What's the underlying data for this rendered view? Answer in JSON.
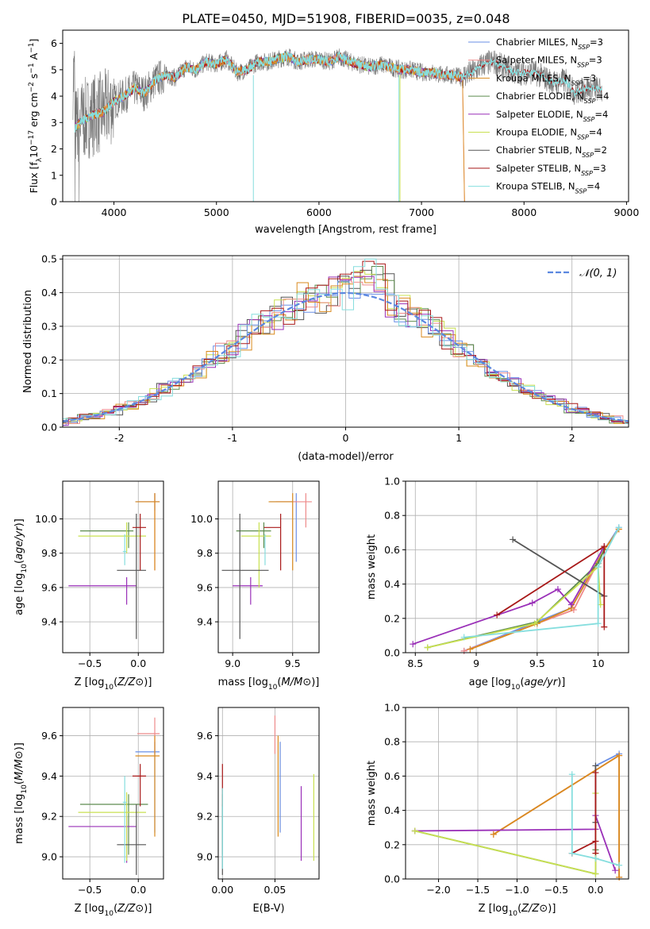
{
  "figure_title": "PLATE=0450, MJD=51908, FIBERID=0035, z=0.048",
  "colors": [
    "#6a8fe6",
    "#ee8a8a",
    "#d98a1e",
    "#5e8c4f",
    "#9a30b8",
    "#c8e050",
    "#555555",
    "#a81818",
    "#86dede"
  ],
  "chart_data": [
    {
      "type": "line",
      "name": "spectrum",
      "title": "PLATE=0450, MJD=51908, FIBERID=0035, z=0.048",
      "xlabel": "wavelength [Angstrom, rest frame]",
      "ylabel_parts": [
        "Flux [f",
        "λ",
        "10",
        "−17",
        " erg cm",
        "−2",
        " s",
        "−1",
        " A",
        "−1",
        "]"
      ],
      "xlim": [
        3500,
        9020
      ],
      "ylim": [
        0,
        6.5
      ],
      "xticks": [
        4000,
        5000,
        6000,
        7000,
        8000,
        9000
      ],
      "yticks": [
        0,
        1,
        2,
        3,
        4,
        5,
        6
      ],
      "legend_position": "top-right",
      "legend": [
        {
          "label": "Chabrier MILES, N",
          "sub": "SSP",
          "suffix": "=3"
        },
        {
          "label": "Salpeter MILES, N",
          "sub": "SSP",
          "suffix": "=3"
        },
        {
          "label": "Kroupa MILES, N",
          "sub": "SSP",
          "suffix": "=3"
        },
        {
          "label": "Chabrier ELODIE, N",
          "sub": "SSP",
          "suffix": "=4"
        },
        {
          "label": "Salpeter ELODIE, N",
          "sub": "SSP",
          "suffix": "=4"
        },
        {
          "label": "Kroupa ELODIE, N",
          "sub": "SSP",
          "suffix": "=4"
        },
        {
          "label": "Chabrier STELIB, N",
          "sub": "SSP",
          "suffix": "=2"
        },
        {
          "label": "Salpeter STELIB, N",
          "sub": "SSP",
          "suffix": "=3"
        },
        {
          "label": "Kroupa STELIB, N",
          "sub": "SSP",
          "suffix": "=4"
        }
      ],
      "model_curve": {
        "x": [
          3620,
          3700,
          3800,
          3900,
          4000,
          4100,
          4200,
          4300,
          4400,
          4500,
          4600,
          4700,
          4800,
          4900,
          5000,
          5100,
          5200,
          5300,
          5400,
          5500,
          5600,
          5700,
          5800,
          5900,
          6000,
          6100,
          6200,
          6300,
          6400,
          6500,
          6600,
          6700,
          6800,
          6900,
          7000,
          7100,
          7200,
          7300,
          7400
        ],
        "y": [
          2.8,
          3.1,
          3.3,
          3.4,
          3.8,
          4.0,
          4.3,
          4.1,
          4.6,
          4.8,
          4.7,
          5.1,
          5.0,
          5.3,
          5.2,
          5.4,
          4.9,
          5.0,
          5.3,
          5.3,
          5.4,
          5.5,
          5.3,
          5.4,
          5.4,
          5.3,
          5.5,
          5.3,
          5.2,
          5.1,
          5.2,
          5.1,
          5.0,
          5.0,
          4.9,
          4.9,
          4.8,
          4.8,
          4.7
        ]
      },
      "extended_curve": {
        "x": [
          7400,
          7500,
          7600,
          7700,
          7800,
          7900,
          8000,
          8100,
          8200,
          8300,
          8400,
          8500,
          8600,
          8700,
          8760
        ],
        "y": [
          4.75,
          4.9,
          5.2,
          5.3,
          5.1,
          4.9,
          4.9,
          4.9,
          4.7,
          4.5,
          4.6,
          4.1,
          4.3,
          4.3,
          4.2
        ]
      },
      "data_envelope": {
        "x_range": [
          3600,
          8760
        ]
      }
    },
    {
      "type": "histogram",
      "name": "residuals",
      "xlabel": "(data-model)/error",
      "ylabel": "Normed distribution",
      "xlim": [
        -2.5,
        2.5
      ],
      "ylim": [
        0,
        0.51
      ],
      "xticks": [
        -2,
        -1,
        0,
        1,
        2
      ],
      "yticks": [
        0.0,
        0.1,
        0.2,
        0.3,
        0.4,
        0.5
      ],
      "grid": true,
      "bin_width": 0.1,
      "reference_label": "𝒩(0, 1)",
      "legend_position": "top-right"
    },
    {
      "type": "errorbar",
      "name": "age-vs-Z",
      "xlabel": "Z [log10(Z/Z⊙)]",
      "ylabel": "age  [log10(age/yr)]",
      "xlim": [
        -0.78,
        0.26
      ],
      "ylim": [
        9.22,
        10.22
      ],
      "xticks": [
        -0.5,
        0.0
      ],
      "yticks": [
        9.4,
        9.6,
        9.8,
        10.0
      ],
      "xtick_labels": [
        "−0.5",
        "0.0"
      ],
      "points": [
        {
          "x": 0.17,
          "y": 10.1,
          "xerr": [
            0.2,
            0.05
          ],
          "yerr": [
            0.05,
            0.05
          ]
        },
        {
          "x": 0.17,
          "y": 10.1,
          "xerr": [
            0.18,
            0.05
          ],
          "yerr": [
            0.4,
            0.05
          ]
        },
        {
          "x": 0.17,
          "y": 10.1,
          "xerr": [
            0.2,
            0.05
          ],
          "yerr": [
            0.4,
            0.05
          ]
        },
        {
          "x": -0.1,
          "y": 9.93,
          "xerr": [
            0.5,
            0.05
          ],
          "yerr": [
            0.1,
            0.05
          ]
        },
        {
          "x": -0.12,
          "y": 9.61,
          "xerr": [
            0.6,
            0.1
          ],
          "yerr": [
            0.11,
            0.05
          ]
        },
        {
          "x": -0.12,
          "y": 9.9,
          "xerr": [
            0.5,
            0.2
          ],
          "yerr": [
            0.1,
            0.08
          ]
        },
        {
          "x": -0.02,
          "y": 9.7,
          "xerr": [
            0.2,
            0.1
          ],
          "yerr": [
            0.4,
            0.33
          ]
        },
        {
          "x": 0.02,
          "y": 9.95,
          "xerr": [
            0.08,
            0.06
          ],
          "yerr": [
            0.25,
            0.08
          ]
        },
        {
          "x": -0.14,
          "y": 9.81,
          "xerr": [
            0.02,
            0.02
          ],
          "yerr": [
            0.08,
            0.1
          ]
        }
      ]
    },
    {
      "type": "errorbar",
      "name": "age-vs-mass",
      "xlabel": "mass [log10(M/M⊙)]",
      "ylabel": "",
      "xlim": [
        8.88,
        9.72
      ],
      "ylim": [
        9.22,
        10.22
      ],
      "xticks": [
        9.0,
        9.5
      ],
      "yticks": [
        9.4,
        9.6,
        9.8,
        10.0
      ],
      "xtick_labels": [
        "9.0",
        "9.5"
      ],
      "points": [
        {
          "x": 9.53,
          "y": 10.1,
          "xerr": [
            0.22,
            0.0
          ],
          "yerr": [
            0.35,
            0.05
          ]
        },
        {
          "x": 9.61,
          "y": 10.1,
          "xerr": [
            0.25,
            0.05
          ],
          "yerr": [
            0.15,
            0.05
          ]
        },
        {
          "x": 9.5,
          "y": 10.1,
          "xerr": [
            0.2,
            0.0
          ],
          "yerr": [
            0.4,
            0.05
          ]
        },
        {
          "x": 9.26,
          "y": 9.93,
          "xerr": [
            0.23,
            0.06
          ],
          "yerr": [
            0.1,
            0.05
          ]
        },
        {
          "x": 9.15,
          "y": 9.61,
          "xerr": [
            0.15,
            0.1
          ],
          "yerr": [
            0.11,
            0.05
          ]
        },
        {
          "x": 9.22,
          "y": 9.9,
          "xerr": [
            0.15,
            0.1
          ],
          "yerr": [
            0.3,
            0.08
          ]
        },
        {
          "x": 9.06,
          "y": 9.7,
          "xerr": [
            0.15,
            0.24
          ],
          "yerr": [
            0.4,
            0.33
          ]
        },
        {
          "x": 9.4,
          "y": 9.95,
          "xerr": [
            0.14,
            0.0
          ],
          "yerr": [
            0.25,
            0.08
          ]
        },
        {
          "x": 9.27,
          "y": 9.81,
          "xerr": [
            0.0,
            0.0
          ],
          "yerr": [
            0.08,
            0.1
          ]
        }
      ]
    },
    {
      "type": "line",
      "name": "weight-vs-age",
      "xlabel": "age  [log10(age/yr)]",
      "ylabel": "mass weight",
      "xlim": [
        8.42,
        10.25
      ],
      "ylim": [
        0,
        1.0
      ],
      "xticks": [
        8.5,
        9.0,
        9.5,
        10.0
      ],
      "yticks": [
        0.0,
        0.2,
        0.4,
        0.6,
        0.8,
        1.0
      ],
      "grid": true,
      "series": [
        {
          "x": [
            8.9,
            9.78,
            10.05,
            10.17
          ],
          "y": [
            0.01,
            0.26,
            0.6,
            0.73
          ]
        },
        {
          "x": [
            8.9,
            9.8,
            10.05,
            10.17
          ],
          "y": [
            0.01,
            0.25,
            0.6,
            0.72
          ]
        },
        {
          "x": [
            8.95,
            9.5,
            9.78,
            10.05,
            10.17
          ],
          "y": [
            0.02,
            0.17,
            0.26,
            0.6,
            0.72
          ]
        },
        {
          "x": [
            8.6,
            9.5,
            10.0,
            10.05
          ],
          "y": [
            0.03,
            0.18,
            0.52,
            0.6
          ]
        },
        {
          "x": [
            8.48,
            9.46,
            9.67,
            9.78,
            10.05
          ],
          "y": [
            0.05,
            0.29,
            0.37,
            0.28,
            0.62
          ]
        },
        {
          "x": [
            8.6,
            9.48,
            10.0,
            10.02
          ],
          "y": [
            0.03,
            0.17,
            0.5,
            0.28
          ]
        },
        {
          "x": [
            9.3,
            10.05
          ],
          "y": [
            0.66,
            0.33
          ]
        },
        {
          "x": [
            9.17,
            10.05,
            10.05
          ],
          "y": [
            0.22,
            0.62,
            0.15
          ]
        },
        {
          "x": [
            8.9,
            10.0,
            10.0,
            10.17
          ],
          "y": [
            0.09,
            0.17,
            0.5,
            0.73
          ]
        }
      ]
    },
    {
      "type": "errorbar",
      "name": "mass-vs-Z",
      "xlabel": "Z [log10(Z/Z⊙)]",
      "ylabel": "mass [log10(M/M⊙)]",
      "xlim": [
        -0.78,
        0.26
      ],
      "ylim": [
        8.89,
        9.74
      ],
      "xticks": [
        -0.5,
        0.0
      ],
      "yticks": [
        9.0,
        9.2,
        9.4,
        9.6
      ],
      "xtick_labels": [
        "−0.5",
        "0.0"
      ],
      "points": [
        {
          "x": 0.17,
          "y": 9.52,
          "xerr": [
            0.2,
            0.05
          ],
          "yerr": [
            0.4,
            0.05
          ]
        },
        {
          "x": 0.17,
          "y": 9.61,
          "xerr": [
            0.18,
            0.05
          ],
          "yerr": [
            0.1,
            0.08
          ]
        },
        {
          "x": 0.17,
          "y": 9.5,
          "xerr": [
            0.2,
            0.05
          ],
          "yerr": [
            0.4,
            0.1
          ]
        },
        {
          "x": -0.1,
          "y": 9.26,
          "xerr": [
            0.5,
            0.2
          ],
          "yerr": [
            0.25,
            0.05
          ]
        },
        {
          "x": -0.12,
          "y": 9.15,
          "xerr": [
            0.6,
            0.1
          ],
          "yerr": [
            0.18,
            0.05
          ]
        },
        {
          "x": -0.12,
          "y": 9.22,
          "xerr": [
            0.5,
            0.2
          ],
          "yerr": [
            0.24,
            0.1
          ]
        },
        {
          "x": -0.02,
          "y": 9.06,
          "xerr": [
            0.2,
            0.1
          ],
          "yerr": [
            0.15,
            0.2
          ]
        },
        {
          "x": 0.02,
          "y": 9.4,
          "xerr": [
            0.08,
            0.06
          ],
          "yerr": [
            0.15,
            0.06
          ]
        },
        {
          "x": -0.14,
          "y": 9.27,
          "xerr": [
            0.02,
            0.02
          ],
          "yerr": [
            0.3,
            0.13
          ]
        }
      ]
    },
    {
      "type": "errorbar",
      "name": "mass-vs-EBV",
      "xlabel": "E(B-V)",
      "ylabel": "",
      "xlim": [
        -0.004,
        0.092
      ],
      "ylim": [
        8.89,
        9.74
      ],
      "xticks": [
        0.0,
        0.05
      ],
      "yticks": [
        9.0,
        9.2,
        9.4,
        9.6
      ],
      "xtick_labels": [
        "0.00",
        "0.05"
      ],
      "points": [
        {
          "x": 0.055,
          "y": 9.52,
          "xerr": [
            0,
            0
          ],
          "yerr": [
            0.4,
            0.05
          ]
        },
        {
          "x": 0.05,
          "y": 9.61,
          "xerr": [
            0,
            0
          ],
          "yerr": [
            0.1,
            0.09
          ]
        },
        {
          "x": 0.053,
          "y": 9.5,
          "xerr": [
            0,
            0
          ],
          "yerr": [
            0.4,
            0.1
          ]
        },
        {
          "x": 0.0,
          "y": 9.26,
          "xerr": [
            0,
            0
          ],
          "yerr": [
            0.25,
            0.05
          ]
        },
        {
          "x": 0.075,
          "y": 9.15,
          "xerr": [
            0,
            0
          ],
          "yerr": [
            0.17,
            0.2
          ]
        },
        {
          "x": 0.087,
          "y": 9.22,
          "xerr": [
            0,
            0
          ],
          "yerr": [
            0.24,
            0.19
          ]
        },
        {
          "x": 0.0,
          "y": 9.06,
          "xerr": [
            0,
            0
          ],
          "yerr": [
            0.15,
            0.2
          ]
        },
        {
          "x": 0.0,
          "y": 9.4,
          "xerr": [
            0,
            0
          ],
          "yerr": [
            0.15,
            0.06
          ]
        },
        {
          "x": 0.0,
          "y": 9.14,
          "xerr": [
            0,
            0
          ],
          "yerr": [
            0.2,
            0.2
          ]
        }
      ]
    },
    {
      "type": "line",
      "name": "weight-vs-Z",
      "xlabel": "Z [log10(Z/Z⊙)]",
      "ylabel": "mass weight",
      "xlim": [
        -2.42,
        0.42
      ],
      "ylim": [
        0,
        1.0
      ],
      "xticks": [
        -2.0,
        -1.5,
        -1.0,
        -0.5,
        0.0
      ],
      "yticks": [
        0.0,
        0.2,
        0.4,
        0.6,
        0.8,
        1.0
      ],
      "xtick_labels": [
        "−2.0",
        "−1.5",
        "−1.0",
        "−0.5",
        "0.0"
      ],
      "grid": true,
      "series": [
        {
          "x": [
            0.0,
            0.3
          ],
          "y": [
            0.66,
            0.73
          ]
        },
        {
          "x": [
            -1.3,
            0.3,
            0.3
          ],
          "y": [
            0.26,
            0.72,
            0.01
          ]
        },
        {
          "x": [
            -1.3,
            0.3,
            0.3
          ],
          "y": [
            0.26,
            0.72,
            0.01
          ]
        },
        {
          "x": [
            -2.3,
            0.0,
            0.0
          ],
          "y": [
            0.28,
            0.03,
            0.17
          ]
        },
        {
          "x": [
            -2.3,
            0.0,
            0.0,
            0.25
          ],
          "y": [
            0.28,
            0.29,
            0.37,
            0.05
          ]
        },
        {
          "x": [
            -2.3,
            0.0,
            0.0
          ],
          "y": [
            0.28,
            0.03,
            0.5
          ]
        },
        {
          "x": [
            0.0,
            0.0
          ],
          "y": [
            0.66,
            0.33
          ]
        },
        {
          "x": [
            -0.3,
            0.0,
            0.0,
            0.0
          ],
          "y": [
            0.15,
            0.22,
            0.62,
            0.15
          ]
        },
        {
          "x": [
            -0.3,
            -0.3,
            0.0,
            0.3
          ],
          "y": [
            0.61,
            0.15,
            0.12,
            0.08
          ]
        }
      ]
    }
  ]
}
